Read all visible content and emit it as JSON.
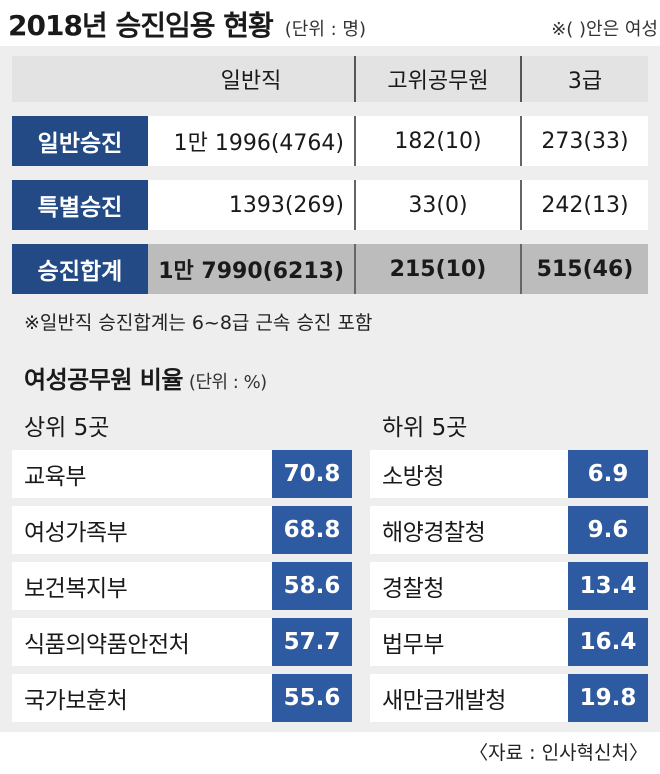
{
  "header": {
    "title": "2018년 승진임용 현황",
    "unit": "(단위 : 명)",
    "note": "※(   )안은 여성"
  },
  "chart_data": [
    {
      "type": "table",
      "columns": [
        "일반직",
        "고위공무원",
        "3급"
      ],
      "rows": [
        {
          "label": "일반승진",
          "values": [
            "1만 1996(4764)",
            "182(10)",
            "273(33)"
          ]
        },
        {
          "label": "특별승진",
          "values": [
            "1393(269)",
            "33(0)",
            "242(13)"
          ]
        },
        {
          "label": "승진합계",
          "values": [
            "1만 7990(6213)",
            "215(10)",
            "515(46)"
          ]
        }
      ]
    },
    {
      "type": "table",
      "title": "여성공무원 비율",
      "unit": "(단위 : %)",
      "groups": [
        {
          "name": "상위 5곳",
          "categories": [
            "교육부",
            "여성가족부",
            "보건복지부",
            "식품의약품안전처",
            "국가보훈처"
          ],
          "values": [
            70.8,
            68.8,
            58.6,
            57.7,
            55.6
          ]
        },
        {
          "name": "하위 5곳",
          "categories": [
            "소방청",
            "해양경찰청",
            "경찰청",
            "법무부",
            "새만금개발청"
          ],
          "values": [
            6.9,
            9.6,
            13.4,
            16.4,
            19.8
          ]
        }
      ]
    }
  ],
  "footnote": "※일반직 승진합계는 6~8급 근속 승진 포함",
  "source": "〈자료 : 인사혁신처〉",
  "colors": {
    "label_bg": "#244a85",
    "value_bg": "#2d5aa0",
    "panel_bg": "#eeeeee",
    "total_row_bg": "#bcbcbc"
  }
}
